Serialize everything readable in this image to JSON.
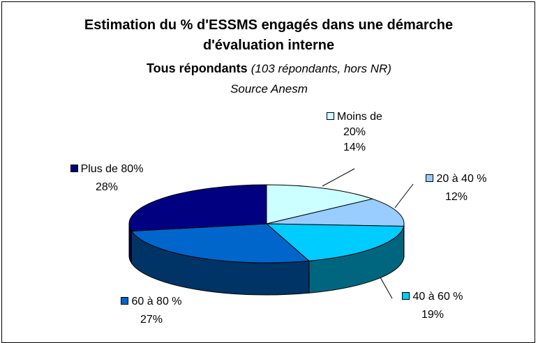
{
  "chart_data": {
    "type": "pie",
    "title": "Estimation du % d'ESSMS engagés dans une démarche d'évaluation interne",
    "subtitle": "Tous répondants",
    "subtitle_detail": "(103 répondants, hors NR)",
    "source": "Source Anesm",
    "categories": [
      "Moins de 20%",
      "20 à 40 %",
      "40 à 60 %",
      "60 à 80 %",
      "Plus de 80%"
    ],
    "values": [
      14,
      12,
      19,
      27,
      28
    ],
    "value_labels": [
      "14%",
      "12%",
      "19%",
      "27%",
      "28%"
    ],
    "colors": [
      "#ccffff",
      "#99ccff",
      "#00ccff",
      "#0066cc",
      "#000080"
    ]
  }
}
